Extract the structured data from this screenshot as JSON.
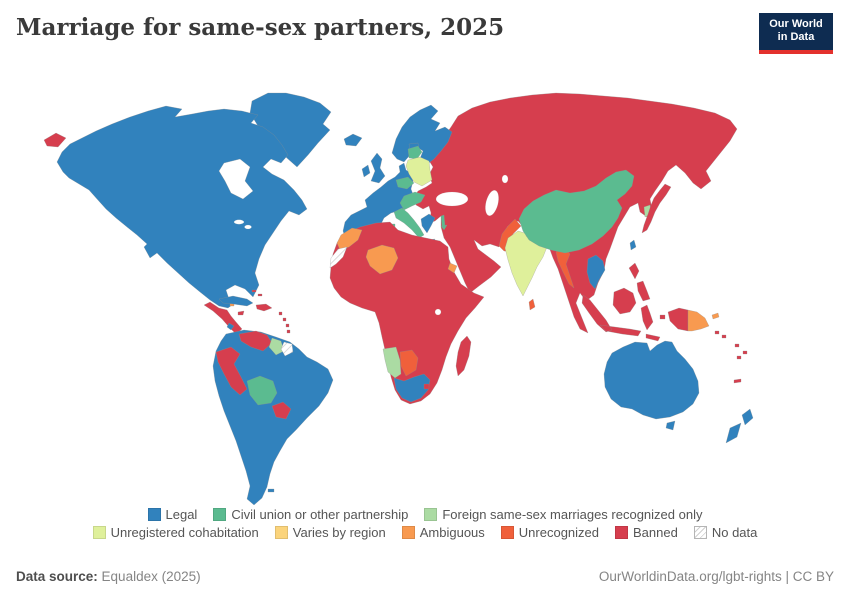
{
  "header": {
    "title": "Marriage for same-sex partners, 2025"
  },
  "logo": {
    "line1": "Our World",
    "line2": "in Data",
    "bg_color": "#0e2c51",
    "accent_color": "#e3312d"
  },
  "legend": {
    "rows": [
      [
        "legal",
        "civil_union",
        "foreign_recognized"
      ],
      [
        "unregistered_cohabitation",
        "varies_by_region",
        "ambiguous",
        "unrecognized",
        "banned",
        "no_data"
      ]
    ]
  },
  "footer": {
    "source_label": "Data source:",
    "source_value": "Equaldex (2025)",
    "attribution": "OurWorldinData.org/lgbt-rights | CC BY"
  },
  "chart_data": {
    "type": "heatmap",
    "subtype": "world-choropleth-map",
    "title": "Marriage for same-sex partners, 2025",
    "year": "2025",
    "legend_position": "bottom",
    "categories": [
      {
        "key": "legal",
        "label": "Legal",
        "color": "#3182bd"
      },
      {
        "key": "civil_union",
        "label": "Civil union or other partnership",
        "color": "#5bbb90"
      },
      {
        "key": "foreign_recognized",
        "label": "Foreign same-sex marriages recognized only",
        "color": "#abdba3"
      },
      {
        "key": "unregistered_cohabitation",
        "label": "Unregistered cohabitation",
        "color": "#dff09b"
      },
      {
        "key": "varies_by_region",
        "label": "Varies by region",
        "color": "#fbd47c"
      },
      {
        "key": "ambiguous",
        "label": "Ambiguous",
        "color": "#f89a50"
      },
      {
        "key": "unrecognized",
        "label": "Unrecognized",
        "color": "#f0603b"
      },
      {
        "key": "banned",
        "label": "Banned",
        "color": "#d63e4e"
      },
      {
        "key": "no_data",
        "label": "No data",
        "color": "hatched"
      }
    ],
    "regions": {
      "chukotka": "banned",
      "greenland": "legal",
      "north-america": "legal",
      "central-america": "banned",
      "belize": "ambiguous",
      "costa-rica": "legal",
      "cuba": "legal",
      "jamaica": "banned",
      "hispaniola": "banned",
      "caribbean-islands": "banned",
      "south-america": "legal",
      "venezuela": "banned",
      "guyana": "foreign_recognized",
      "suriname": "no_data",
      "peru": "banned",
      "bolivia": "civil_union",
      "paraguay": "banned",
      "falkland-islands": "legal",
      "iceland": "legal",
      "united-kingdom": "legal",
      "ireland": "legal",
      "scandinavia": "legal",
      "estonia": "legal",
      "europe-mainland": "legal",
      "baltics": "civil_union",
      "poland-slovakia": "unregistered_cohabitation",
      "czechia": "civil_union",
      "hungary-croatia": "civil_union",
      "italy": "civil_union",
      "greece": "legal",
      "cyprus": "civil_union",
      "russia-middle-east-asia": "banned",
      "israel": "civil_union",
      "africa": "banned",
      "morocco": "ambiguous",
      "western-sahara": "no_data",
      "niger": "ambiguous",
      "djibouti-eritrea": "ambiguous",
      "namibia": "foreign_recognized",
      "botswana": "unrecognized",
      "south-africa": "legal",
      "eswatini": "banned",
      "madagascar": "banned",
      "pakistan": "unrecognized",
      "india": "unregistered_cohabitation",
      "nepal": "ambiguous",
      "sri-lanka": "unrecognized",
      "myanmar": "unrecognized",
      "thailand": "legal",
      "china": "civil_union",
      "taiwan": "legal",
      "south-korea": "foreign_recognized",
      "japan": "banned",
      "philippines": "banned",
      "indonesia": "banned",
      "new-guinea-west": "banned",
      "papua-new-guinea": "ambiguous",
      "melanesia-islands": "banned",
      "australia": "legal",
      "new-zealand": "legal"
    }
  }
}
